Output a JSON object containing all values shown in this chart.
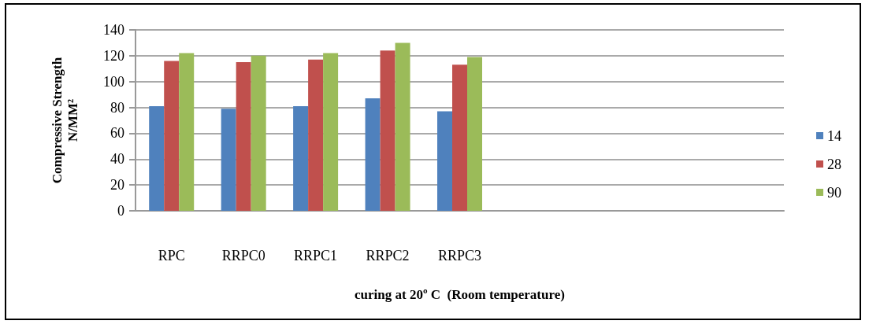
{
  "chart_data": {
    "type": "bar",
    "categories": [
      "RPC",
      "RRPC0",
      "RRPC1",
      "RRPC2",
      "RRPC3",
      null,
      null,
      null,
      null
    ],
    "series": [
      {
        "name": "14",
        "color": "#4f81bd",
        "values": [
          81,
          79,
          81,
          87,
          77,
          null,
          null,
          null,
          null
        ]
      },
      {
        "name": "28",
        "color": "#c0504d",
        "values": [
          116,
          115,
          117,
          124,
          113,
          null,
          null,
          null,
          null
        ]
      },
      {
        "name": "90",
        "color": "#9bbb59",
        "values": [
          122,
          120,
          122,
          130,
          119,
          null,
          null,
          null,
          null
        ]
      }
    ],
    "xlabel": "curing at 20º C  (Room temperature)",
    "ylabel": "Compressive Strength\nN/MM²",
    "ylim": [
      0,
      140
    ],
    "yticks": [
      0,
      20,
      40,
      60,
      80,
      100,
      120,
      140
    ],
    "grid": "y",
    "legend": "right"
  }
}
